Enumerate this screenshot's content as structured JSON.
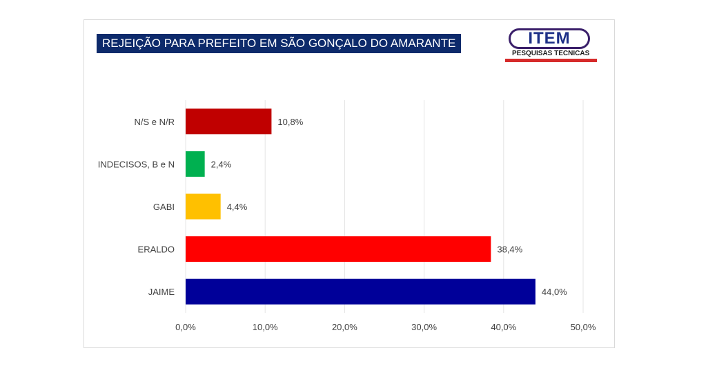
{
  "title": "REJEIÇÃO PARA PREFEITO EM SÃO GONÇALO DO AMARANTE",
  "logo": {
    "name": "ITEM",
    "subtitle": "PESQUISAS TECNICAS"
  },
  "chart_data": {
    "type": "bar",
    "orientation": "horizontal",
    "title": "REJEIÇÃO PARA PREFEITO EM SÃO GONÇALO DO AMARANTE",
    "categories": [
      "N/S e N/R",
      "INDECISOS, B e N",
      "GABI",
      "ERALDO",
      "JAIME"
    ],
    "values": [
      10.8,
      2.4,
      4.4,
      38.4,
      44.0
    ],
    "value_labels": [
      "10,8%",
      "2,4%",
      "4,4%",
      "38,4%",
      "44,0%"
    ],
    "colors": [
      "#c00000",
      "#00b050",
      "#ffc000",
      "#ff0000",
      "#000099"
    ],
    "xlim": [
      0,
      50
    ],
    "xticks": [
      0,
      10,
      20,
      30,
      40,
      50
    ],
    "xtick_labels": [
      "0,0%",
      "10,0%",
      "20,0%",
      "30,0%",
      "40,0%",
      "50,0%"
    ],
    "grid": true
  }
}
